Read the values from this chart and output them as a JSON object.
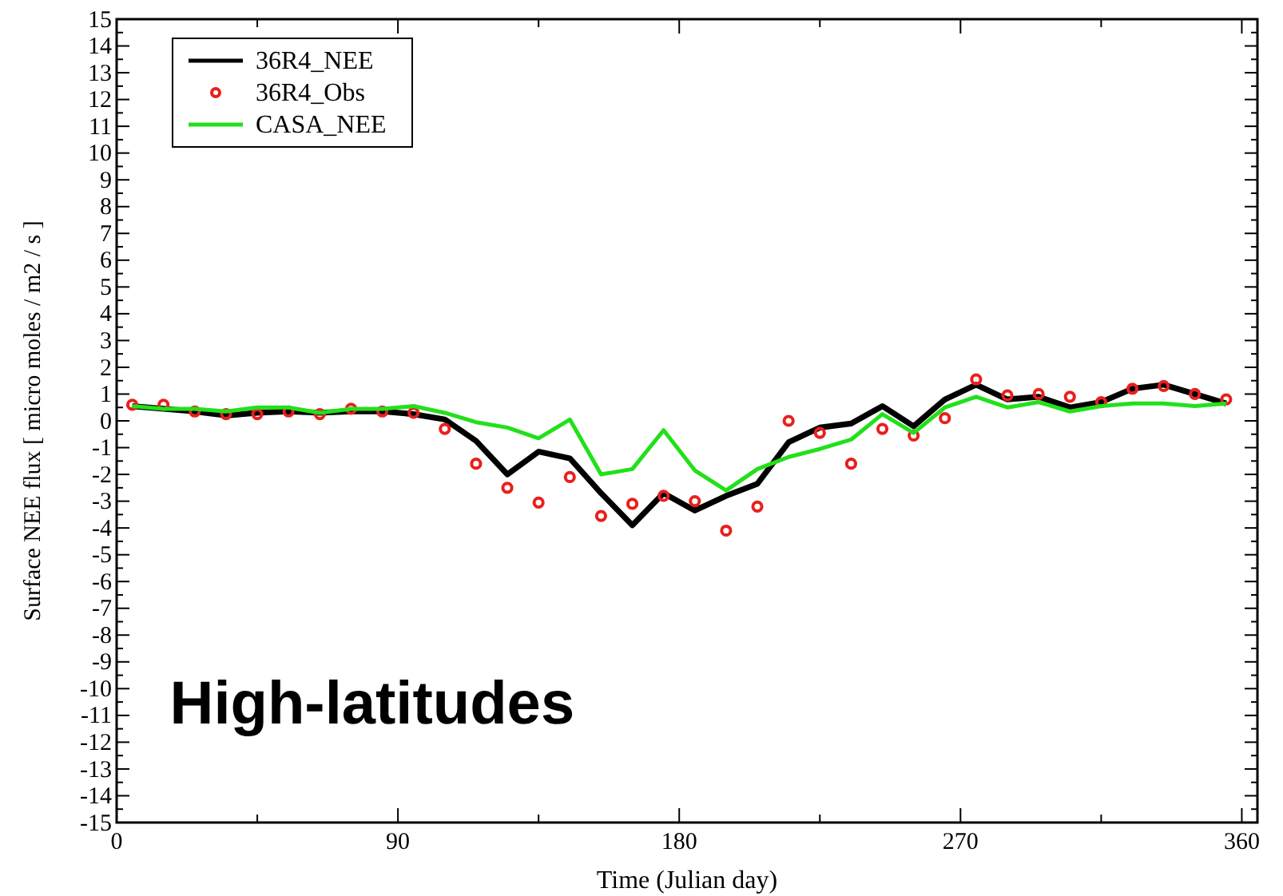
{
  "chart_data": {
    "type": "line",
    "xlabel": "Time (Julian day)",
    "ylabel": "Surface NEE flux [  micro moles / m2 / s ]",
    "annotations": [
      "High-latitudes"
    ],
    "x": [
      5,
      15,
      25,
      35,
      45,
      55,
      65,
      75,
      85,
      95,
      105,
      115,
      125,
      135,
      145,
      155,
      165,
      175,
      185,
      195,
      205,
      215,
      225,
      235,
      245,
      255,
      265,
      275,
      285,
      295,
      305,
      315,
      325,
      335,
      345,
      355
    ],
    "series": [
      {
        "name": "36R4_NEE",
        "color": "#000000",
        "values": [
          0.55,
          0.45,
          0.35,
          0.2,
          0.3,
          0.35,
          0.3,
          0.35,
          0.35,
          0.25,
          0.05,
          -0.75,
          -2.0,
          -1.15,
          -1.4,
          -2.7,
          -3.9,
          -2.7,
          -3.35,
          -2.8,
          -2.35,
          -0.8,
          -0.25,
          -0.1,
          0.55,
          -0.2,
          0.8,
          1.35,
          0.8,
          0.9,
          0.5,
          0.7,
          1.2,
          1.35,
          1.0,
          0.65
        ]
      },
      {
        "name": "36R4_Obs",
        "type": "scatter",
        "marker": "circle",
        "color": "#e8201c",
        "values": [
          0.6,
          0.6,
          0.35,
          0.25,
          0.25,
          0.35,
          0.25,
          0.45,
          0.35,
          0.3,
          -0.3,
          -1.6,
          -2.5,
          -3.05,
          -2.1,
          -3.55,
          -3.1,
          -2.8,
          -3.0,
          -4.1,
          -3.2,
          0,
          -0.45,
          -1.6,
          -0.3,
          -0.55,
          0.1,
          1.55,
          0.95,
          1.0,
          0.9,
          0.7,
          1.2,
          1.3,
          1.0,
          0.8
        ]
      },
      {
        "name": "CASA_NEE",
        "color": "#22e01a",
        "values": [
          0.55,
          0.45,
          0.45,
          0.35,
          0.5,
          0.5,
          0.3,
          0.45,
          0.45,
          0.55,
          0.3,
          -0.05,
          -0.25,
          -0.65,
          0.05,
          -2.0,
          -1.8,
          -0.35,
          -1.85,
          -2.6,
          -1.8,
          -1.35,
          -1.05,
          -0.7,
          0.25,
          -0.45,
          0.5,
          0.9,
          0.5,
          0.7,
          0.35,
          0.55,
          0.65,
          0.65,
          0.55,
          0.65
        ]
      }
    ],
    "xlim": [
      0,
      365
    ],
    "xticks": [
      0,
      90,
      180,
      270,
      360
    ],
    "ylim": [
      -15,
      15
    ],
    "yticks": [
      -15,
      -14,
      -13,
      -12,
      -11,
      -10,
      -9,
      -8,
      -7,
      -6,
      -5,
      -4,
      -3,
      -2,
      -1,
      0,
      1,
      2,
      3,
      4,
      5,
      6,
      7,
      8,
      9,
      10,
      11,
      12,
      13,
      14,
      15
    ],
    "grid": false,
    "legend": "top left"
  }
}
